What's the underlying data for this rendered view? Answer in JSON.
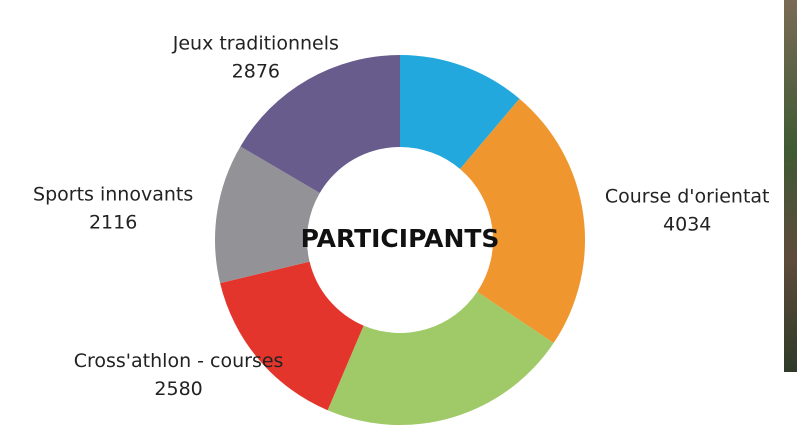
{
  "chart_data": {
    "type": "donut",
    "center_text": "PARTICIPANTS",
    "categories": [
      null,
      "Course d'orientat",
      null,
      "Cross'athlon - courses",
      "Sports innovants",
      "Jeux traditionnels"
    ],
    "values": [
      1940,
      4034,
      3820,
      2580,
      2116,
      2876
    ],
    "colors": [
      "#22a8dc",
      "#f0962e",
      "#a0c968",
      "#e4352d",
      "#939297",
      "#685c8c"
    ]
  }
}
